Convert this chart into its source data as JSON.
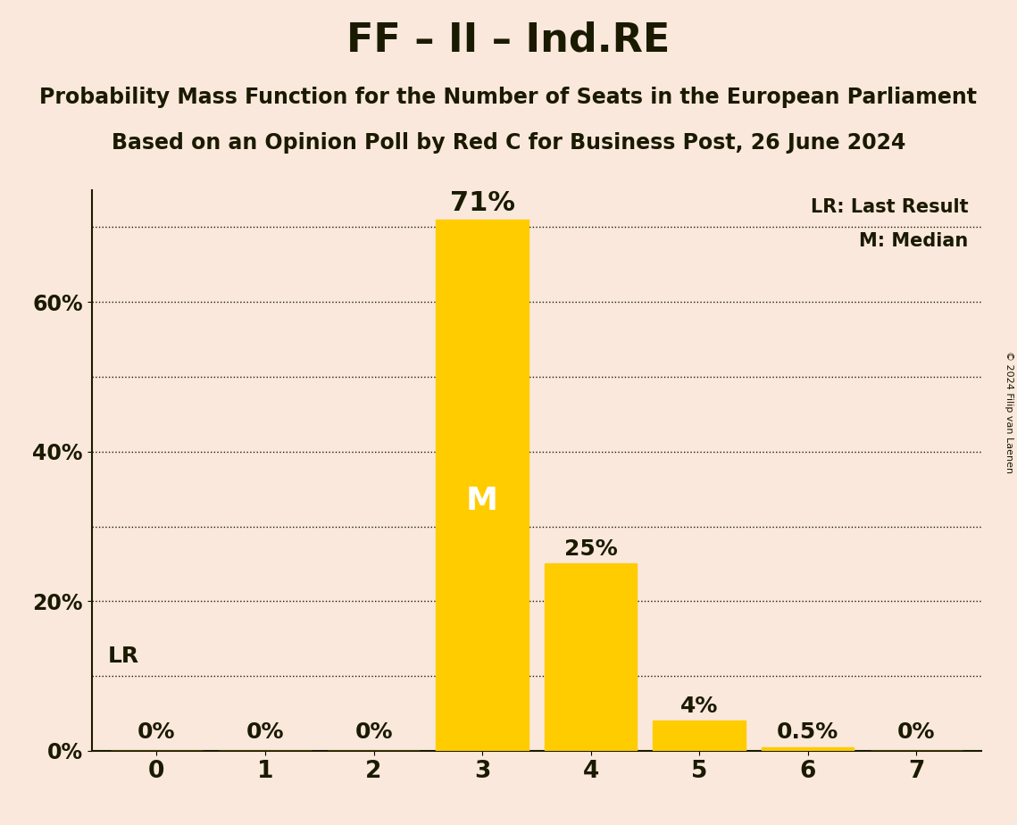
{
  "title": "FF – II – Ind.RE",
  "subtitle1": "Probability Mass Function for the Number of Seats in the European Parliament",
  "subtitle2": "Based on an Opinion Poll by Red C for Business Post, 26 June 2024",
  "copyright": "© 2024 Filip van Laenen",
  "categories": [
    0,
    1,
    2,
    3,
    4,
    5,
    6,
    7
  ],
  "values": [
    0.0,
    0.0,
    0.0,
    71.0,
    25.0,
    4.0,
    0.5,
    0.0
  ],
  "bar_color": "#FFCC00",
  "background_color": "#FAE8DC",
  "text_color": "#1a1a00",
  "lr_value": 10.0,
  "lr_label": "LR",
  "median_seat": 3,
  "median_label": "M",
  "legend_lr": "LR: Last Result",
  "legend_m": "M: Median",
  "ylim": [
    0,
    75
  ],
  "yticks": [
    0,
    20,
    40,
    60
  ],
  "ytick_labels": [
    "0%",
    "20%",
    "40%",
    "60%"
  ],
  "dotted_lines": [
    10,
    20,
    30,
    40,
    50,
    60,
    70
  ],
  "bar_labels": [
    "0%",
    "0%",
    "0%",
    "71%",
    "25%",
    "4%",
    "0.5%",
    "0%"
  ],
  "title_fontsize": 32,
  "subtitle_fontsize": 17,
  "label_fontsize": 15,
  "tick_fontsize": 17,
  "annotation_fontsize": 18,
  "annotation_fontsize_large": 22,
  "median_fontsize": 26,
  "copyright_fontsize": 8
}
